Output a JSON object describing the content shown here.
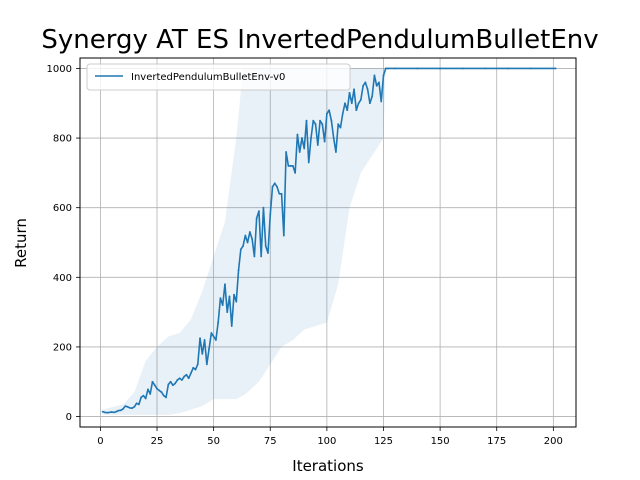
{
  "chart_data": {
    "type": "line",
    "title": "Synergy AT ES InvertedPendulumBulletEnv",
    "xlabel": "Iterations",
    "ylabel": "Return",
    "xlim": [
      -9,
      210
    ],
    "ylim": [
      -30,
      1030
    ],
    "xticks": [
      0,
      25,
      50,
      75,
      100,
      125,
      150,
      175,
      200
    ],
    "yticks": [
      0,
      200,
      400,
      600,
      800,
      1000
    ],
    "grid": true,
    "legend_position": "top-left",
    "colors": {
      "line": "#1f77b4",
      "band": "#1f77b4",
      "grid": "#b0b0b0"
    },
    "series": [
      {
        "name": "InvertedPendulumBulletEnv-v0",
        "points": [
          [
            1,
            14
          ],
          [
            2,
            12
          ],
          [
            3,
            11
          ],
          [
            4,
            12
          ],
          [
            5,
            13
          ],
          [
            6,
            12
          ],
          [
            7,
            14
          ],
          [
            8,
            17
          ],
          [
            9,
            18
          ],
          [
            10,
            22
          ],
          [
            11,
            30
          ],
          [
            12,
            28
          ],
          [
            13,
            25
          ],
          [
            14,
            24
          ],
          [
            15,
            28
          ],
          [
            16,
            38
          ],
          [
            17,
            35
          ],
          [
            18,
            55
          ],
          [
            19,
            60
          ],
          [
            20,
            52
          ],
          [
            21,
            78
          ],
          [
            22,
            65
          ],
          [
            23,
            100
          ],
          [
            24,
            90
          ],
          [
            25,
            80
          ],
          [
            26,
            75
          ],
          [
            27,
            70
          ],
          [
            28,
            60
          ],
          [
            29,
            55
          ],
          [
            30,
            92
          ],
          [
            31,
            100
          ],
          [
            32,
            90
          ],
          [
            33,
            95
          ],
          [
            34,
            105
          ],
          [
            35,
            110
          ],
          [
            36,
            105
          ],
          [
            37,
            115
          ],
          [
            38,
            120
          ],
          [
            39,
            110
          ],
          [
            40,
            125
          ],
          [
            41,
            140
          ],
          [
            42,
            135
          ],
          [
            43,
            150
          ],
          [
            44,
            225
          ],
          [
            45,
            180
          ],
          [
            46,
            220
          ],
          [
            47,
            150
          ],
          [
            48,
            195
          ],
          [
            49,
            240
          ],
          [
            50,
            230
          ],
          [
            51,
            220
          ],
          [
            52,
            270
          ],
          [
            53,
            340
          ],
          [
            54,
            320
          ],
          [
            55,
            380
          ],
          [
            56,
            300
          ],
          [
            57,
            345
          ],
          [
            58,
            260
          ],
          [
            59,
            350
          ],
          [
            60,
            330
          ],
          [
            61,
            420
          ],
          [
            62,
            480
          ],
          [
            63,
            490
          ],
          [
            64,
            520
          ],
          [
            65,
            500
          ],
          [
            66,
            530
          ],
          [
            67,
            510
          ],
          [
            68,
            460
          ],
          [
            69,
            570
          ],
          [
            70,
            590
          ],
          [
            71,
            460
          ],
          [
            72,
            600
          ],
          [
            73,
            490
          ],
          [
            74,
            470
          ],
          [
            75,
            580
          ],
          [
            76,
            660
          ],
          [
            77,
            670
          ],
          [
            78,
            660
          ],
          [
            79,
            640
          ],
          [
            80,
            640
          ],
          [
            81,
            520
          ],
          [
            82,
            760
          ],
          [
            83,
            720
          ],
          [
            84,
            720
          ],
          [
            85,
            720
          ],
          [
            86,
            700
          ],
          [
            87,
            810
          ],
          [
            88,
            760
          ],
          [
            89,
            800
          ],
          [
            90,
            770
          ],
          [
            91,
            850
          ],
          [
            92,
            730
          ],
          [
            93,
            800
          ],
          [
            94,
            850
          ],
          [
            95,
            840
          ],
          [
            96,
            780
          ],
          [
            97,
            850
          ],
          [
            98,
            840
          ],
          [
            99,
            790
          ],
          [
            100,
            870
          ],
          [
            101,
            880
          ],
          [
            102,
            850
          ],
          [
            103,
            800
          ],
          [
            104,
            760
          ],
          [
            105,
            840
          ],
          [
            106,
            830
          ],
          [
            107,
            870
          ],
          [
            108,
            900
          ],
          [
            109,
            880
          ],
          [
            110,
            930
          ],
          [
            111,
            900
          ],
          [
            112,
            940
          ],
          [
            113,
            880
          ],
          [
            114,
            900
          ],
          [
            115,
            910
          ],
          [
            116,
            950
          ],
          [
            117,
            960
          ],
          [
            118,
            940
          ],
          [
            119,
            900
          ],
          [
            120,
            920
          ],
          [
            121,
            980
          ],
          [
            122,
            950
          ],
          [
            123,
            960
          ],
          [
            124,
            905
          ],
          [
            125,
            980
          ],
          [
            126,
            1000
          ],
          [
            127,
            1000
          ],
          [
            130,
            1000
          ],
          [
            140,
            1000
          ],
          [
            150,
            1000
          ],
          [
            160,
            1000
          ],
          [
            170,
            1000
          ],
          [
            180,
            1000
          ],
          [
            190,
            1000
          ],
          [
            201,
            1000
          ]
        ],
        "band": [
          [
            1,
            5,
            20
          ],
          [
            10,
            5,
            35
          ],
          [
            15,
            5,
            70
          ],
          [
            20,
            5,
            160
          ],
          [
            25,
            5,
            200
          ],
          [
            30,
            5,
            230
          ],
          [
            35,
            10,
            240
          ],
          [
            40,
            20,
            280
          ],
          [
            45,
            30,
            360
          ],
          [
            50,
            50,
            460
          ],
          [
            55,
            50,
            560
          ],
          [
            60,
            50,
            800
          ],
          [
            63,
            60,
            1000
          ],
          [
            65,
            70,
            1000
          ],
          [
            70,
            100,
            1000
          ],
          [
            75,
            150,
            1000
          ],
          [
            80,
            200,
            1000
          ],
          [
            85,
            220,
            1000
          ],
          [
            90,
            250,
            1000
          ],
          [
            95,
            260,
            1000
          ],
          [
            100,
            270,
            1000
          ],
          [
            105,
            380,
            1000
          ],
          [
            110,
            600,
            1000
          ],
          [
            115,
            700,
            1000
          ],
          [
            120,
            750,
            1000
          ],
          [
            125,
            800,
            1000
          ],
          [
            126,
            1000,
            1000
          ],
          [
            201,
            1000,
            1000
          ]
        ]
      }
    ]
  }
}
